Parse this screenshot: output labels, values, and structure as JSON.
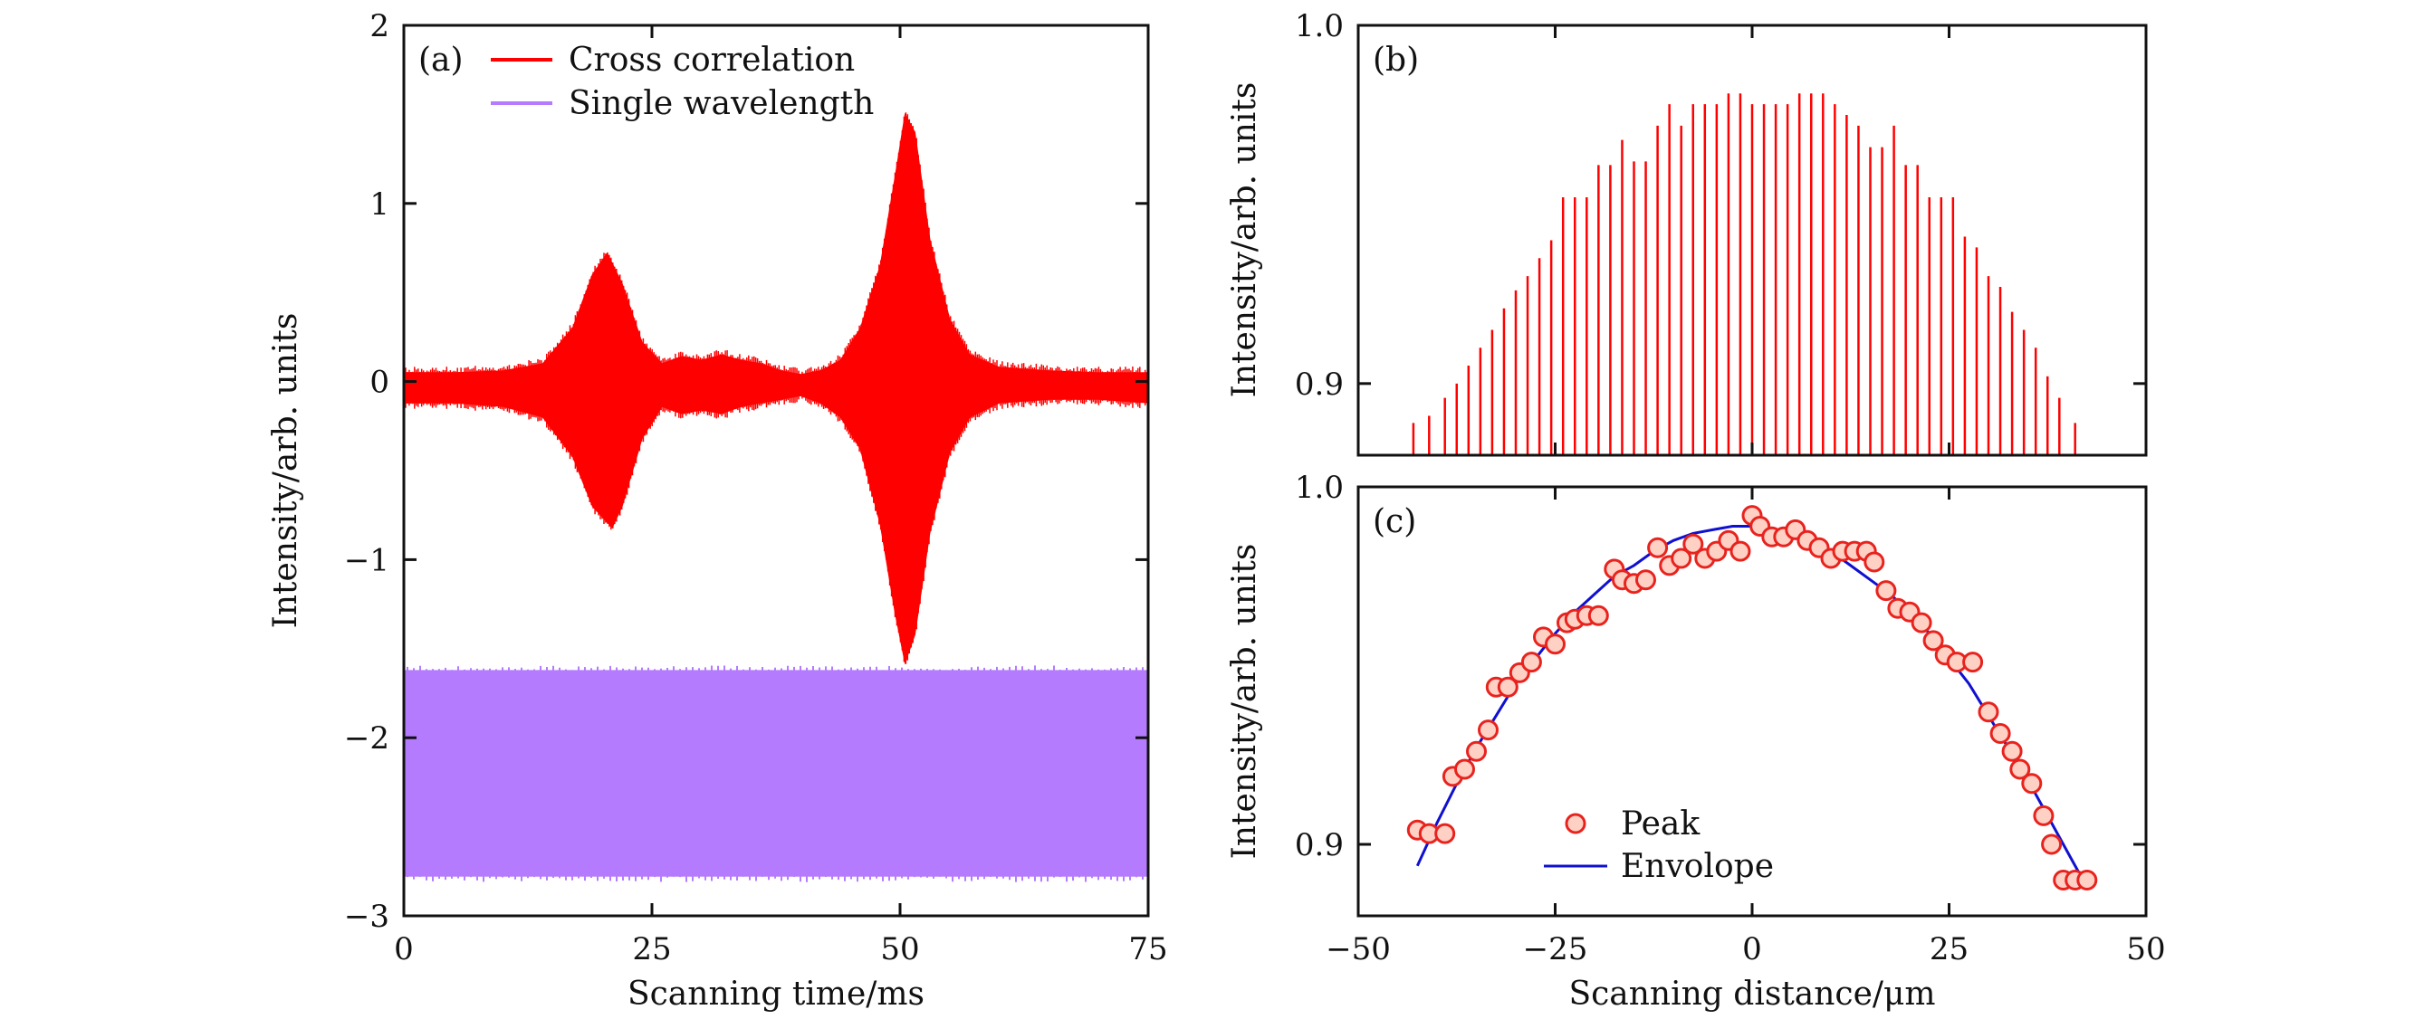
{
  "colors": {
    "cross_correlation": "#ff0000",
    "single_wavelength": "#b57bff",
    "peak_marker_fill": "#ffd0c4",
    "peak_marker_stroke": "#e8231e",
    "envelope": "#1010d0",
    "axis": "#111111"
  },
  "chart_data": [
    {
      "id": "a",
      "panel_label": "(a)",
      "type": "line",
      "xlabel": "Scanning time/ms",
      "ylabel": "Intensity/arb. units",
      "xlim": [
        0,
        75
      ],
      "ylim": [
        -3,
        2
      ],
      "x_ticks": [
        0,
        25,
        50,
        75
      ],
      "x_tick_labels": [
        "0",
        "25",
        "50",
        "75"
      ],
      "y_ticks": [
        2,
        1,
        0,
        -1,
        -2,
        -3
      ],
      "y_tick_labels": [
        "2",
        "1",
        "0",
        "−1",
        "−2",
        "−3"
      ],
      "grid": false,
      "legend_position": "top-left",
      "series": [
        {
          "name": "Cross correlation",
          "style": "filled oscillation envelope",
          "upper": [
            [
              0,
              0.05
            ],
            [
              5,
              0.05
            ],
            [
              10,
              0.06
            ],
            [
              14,
              0.1
            ],
            [
              17,
              0.3
            ],
            [
              19,
              0.6
            ],
            [
              20.5,
              0.72
            ],
            [
              22,
              0.55
            ],
            [
              24,
              0.22
            ],
            [
              26,
              0.1
            ],
            [
              28,
              0.14
            ],
            [
              30,
              0.12
            ],
            [
              32,
              0.15
            ],
            [
              34,
              0.12
            ],
            [
              36,
              0.1
            ],
            [
              38,
              0.06
            ],
            [
              40,
              0.04
            ],
            [
              42,
              0.06
            ],
            [
              44,
              0.12
            ],
            [
              46,
              0.3
            ],
            [
              48,
              0.65
            ],
            [
              49.5,
              1.15
            ],
            [
              50.5,
              1.5
            ],
            [
              51.5,
              1.4
            ],
            [
              53,
              0.8
            ],
            [
              55,
              0.35
            ],
            [
              57,
              0.15
            ],
            [
              60,
              0.08
            ],
            [
              65,
              0.06
            ],
            [
              70,
              0.05
            ],
            [
              75,
              0.05
            ]
          ],
          "lower": [
            [
              0,
              -0.12
            ],
            [
              5,
              -0.12
            ],
            [
              10,
              -0.14
            ],
            [
              14,
              -0.2
            ],
            [
              17,
              -0.42
            ],
            [
              19,
              -0.7
            ],
            [
              21,
              -0.82
            ],
            [
              22,
              -0.7
            ],
            [
              24,
              -0.32
            ],
            [
              26,
              -0.14
            ],
            [
              28,
              -0.18
            ],
            [
              30,
              -0.16
            ],
            [
              32,
              -0.18
            ],
            [
              34,
              -0.14
            ],
            [
              36,
              -0.12
            ],
            [
              38,
              -0.1
            ],
            [
              40,
              -0.08
            ],
            [
              42,
              -0.12
            ],
            [
              44,
              -0.2
            ],
            [
              46,
              -0.38
            ],
            [
              48,
              -0.8
            ],
            [
              49.5,
              -1.3
            ],
            [
              50.5,
              -1.58
            ],
            [
              51.5,
              -1.42
            ],
            [
              53,
              -0.85
            ],
            [
              55,
              -0.4
            ],
            [
              57,
              -0.2
            ],
            [
              60,
              -0.12
            ],
            [
              65,
              -0.1
            ],
            [
              70,
              -0.1
            ],
            [
              75,
              -0.12
            ]
          ]
        },
        {
          "name": "Single wavelength",
          "style": "filled oscillation band",
          "upper_level": -1.62,
          "lower_level": -2.78
        }
      ]
    },
    {
      "id": "b",
      "panel_label": "(b)",
      "type": "line",
      "xlabel": "",
      "ylabel": "Intensity/arb. units",
      "xlim": [
        -50,
        50
      ],
      "ylim": [
        0.88,
        1.0
      ],
      "x_ticks": [
        -50,
        -25,
        0,
        25,
        50
      ],
      "y_ticks": [
        1.0,
        0.9
      ],
      "y_tick_labels": [
        "1.0",
        "0.9"
      ],
      "grid": false,
      "series": [
        {
          "name": "",
          "style": "fringe spikes",
          "x": [
            -43,
            -41,
            -39,
            -37.5,
            -36,
            -34.5,
            -33,
            -31.5,
            -30,
            -28.5,
            -27,
            -25.5,
            -24,
            -22.5,
            -21,
            -19.5,
            -18,
            -16.5,
            -15,
            -13.5,
            -12,
            -10.5,
            -9,
            -7.5,
            -6,
            -4.5,
            -3,
            -1.5,
            0,
            1.5,
            3,
            4.5,
            6,
            7.5,
            9,
            10.5,
            12,
            13.5,
            15,
            16.5,
            18,
            19.5,
            21,
            22.5,
            24,
            25.5,
            27,
            28.5,
            30,
            31.5,
            33,
            34.5,
            36,
            37.5,
            39,
            41
          ],
          "y": [
            0.889,
            0.891,
            0.896,
            0.9,
            0.905,
            0.91,
            0.915,
            0.921,
            0.926,
            0.93,
            0.935,
            0.94,
            0.952,
            0.952,
            0.952,
            0.961,
            0.961,
            0.968,
            0.962,
            0.962,
            0.972,
            0.978,
            0.972,
            0.978,
            0.978,
            0.978,
            0.981,
            0.981,
            0.978,
            0.978,
            0.978,
            0.978,
            0.981,
            0.981,
            0.981,
            0.978,
            0.975,
            0.972,
            0.966,
            0.966,
            0.972,
            0.961,
            0.961,
            0.952,
            0.952,
            0.952,
            0.941,
            0.938,
            0.93,
            0.927,
            0.92,
            0.915,
            0.91,
            0.902,
            0.896,
            0.889
          ]
        }
      ]
    },
    {
      "id": "c",
      "panel_label": "(c)",
      "type": "scatter",
      "xlabel": "Scanning distance/μm",
      "ylabel": "Intensity/arb. units",
      "xlim": [
        -50,
        50
      ],
      "ylim": [
        0.88,
        1.0
      ],
      "x_ticks": [
        -50,
        -25,
        0,
        25,
        50
      ],
      "x_tick_labels": [
        "−50",
        "−25",
        "0",
        "25",
        "50"
      ],
      "y_ticks": [
        1.0,
        0.9
      ],
      "y_tick_labels": [
        "1.0",
        "0.9"
      ],
      "grid": false,
      "legend_position": "bottom-left",
      "series": [
        {
          "name": "Peak",
          "marker": "circle",
          "x": [
            -42.5,
            -41,
            -39,
            -38,
            -36.5,
            -35,
            -33.5,
            -32.5,
            -31,
            -29.5,
            -28,
            -26.5,
            -25,
            -23.5,
            -22.5,
            -21,
            -19.5,
            -17.5,
            -16.5,
            -15,
            -13.5,
            -12,
            -10.5,
            -9,
            -7.5,
            -6,
            -4.5,
            -3,
            -1.5,
            0,
            1,
            2.5,
            4,
            5.5,
            7,
            8.5,
            10,
            11.5,
            13,
            14.5,
            15.5,
            17,
            18.5,
            20,
            21.5,
            23,
            24.5,
            26,
            28,
            30,
            31.5,
            33,
            34,
            35.5,
            37,
            38,
            39.5,
            41,
            42.5
          ],
          "y": [
            0.904,
            0.903,
            0.903,
            0.919,
            0.921,
            0.926,
            0.932,
            0.944,
            0.944,
            0.948,
            0.951,
            0.958,
            0.956,
            0.962,
            0.963,
            0.964,
            0.964,
            0.977,
            0.974,
            0.973,
            0.974,
            0.983,
            0.978,
            0.98,
            0.984,
            0.98,
            0.982,
            0.985,
            0.982,
            0.992,
            0.989,
            0.986,
            0.986,
            0.988,
            0.985,
            0.983,
            0.98,
            0.982,
            0.982,
            0.982,
            0.979,
            0.971,
            0.966,
            0.965,
            0.962,
            0.957,
            0.953,
            0.951,
            0.951,
            0.937,
            0.931,
            0.926,
            0.921,
            0.917,
            0.908,
            0.9,
            0.89,
            0.89,
            0.89
          ]
        },
        {
          "name": "Envolope",
          "style": "line",
          "x": [
            -42.5,
            -40,
            -37.5,
            -35,
            -32.5,
            -30,
            -27.5,
            -25,
            -22.5,
            -20,
            -17.5,
            -15,
            -12.5,
            -10,
            -7.5,
            -5,
            -2.5,
            0,
            2.5,
            5,
            7.5,
            10,
            12.5,
            15,
            17.5,
            20,
            22.5,
            25,
            27.5,
            30,
            32.5,
            35,
            37.5,
            40,
            42.5
          ],
          "y": [
            0.894,
            0.906,
            0.917,
            0.927,
            0.936,
            0.945,
            0.952,
            0.959,
            0.965,
            0.97,
            0.975,
            0.978,
            0.982,
            0.985,
            0.987,
            0.988,
            0.989,
            0.989,
            0.988,
            0.987,
            0.985,
            0.982,
            0.978,
            0.974,
            0.97,
            0.965,
            0.959,
            0.952,
            0.945,
            0.936,
            0.927,
            0.918,
            0.908,
            0.898,
            0.888
          ]
        }
      ]
    }
  ]
}
